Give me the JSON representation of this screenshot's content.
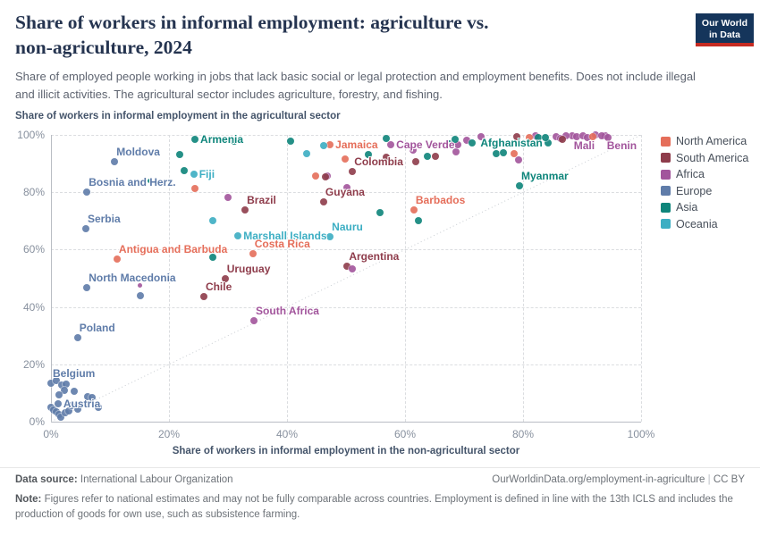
{
  "header": {
    "title_line1": "Share of workers in informal employment: agriculture vs.",
    "title_line2": "non-agriculture, 2024",
    "subtitle": "Share of employed people working in jobs that lack basic social or legal protection and employment benefits. Does not include illegal and illicit activities. The agricultural sector includes agriculture, forestry, and fishing.",
    "logo": {
      "line1": "Our World",
      "line2": "in Data",
      "bg_color": "#15355B",
      "bar_color": "#C62B22"
    }
  },
  "chart_data": {
    "type": "scatter",
    "title": "Share of workers in informal employment: agriculture vs. non-agriculture, 2024",
    "xlabel": "Share of workers in informal employment in the non-agricultural sector",
    "ylabel": "Share of workers in informal employment in the agricultural sector",
    "xlim": [
      0,
      100
    ],
    "ylim": [
      0,
      100
    ],
    "x_ticks": [
      "0%",
      "20%",
      "40%",
      "60%",
      "80%",
      "100%"
    ],
    "y_ticks": [
      "0%",
      "20%",
      "40%",
      "60%",
      "80%",
      "100%"
    ],
    "grid": "dashed",
    "diagonal_parity_line": true,
    "legend_position": "right",
    "regions": [
      {
        "id": "north_america",
        "label": "North America",
        "color": "#E56E5A"
      },
      {
        "id": "south_america",
        "label": "South America",
        "color": "#8E3C4B"
      },
      {
        "id": "africa",
        "label": "Africa",
        "color": "#A2559C"
      },
      {
        "id": "europe",
        "label": "Europe",
        "color": "#5F7CA9"
      },
      {
        "id": "asia",
        "label": "Asia",
        "color": "#0E857B"
      },
      {
        "id": "oceania",
        "label": "Oceania",
        "color": "#3CAEC3"
      }
    ],
    "points": [
      {
        "label": "Moldova",
        "region": "europe",
        "x": 10.8,
        "y": 90.7,
        "label_pos": "above"
      },
      {
        "label": "Armenia",
        "region": "asia",
        "x": 24.4,
        "y": 98.4,
        "label_pos": "right"
      },
      {
        "label": "Fiji",
        "region": "oceania",
        "x": 24.2,
        "y": 86.3,
        "label_pos": "right"
      },
      {
        "label": "Bosnia and Herz.",
        "region": "europe",
        "x": 6.1,
        "y": 80.1,
        "label_pos": "above"
      },
      {
        "label": "Serbia",
        "region": "europe",
        "x": 5.9,
        "y": 67.3,
        "label_pos": "above"
      },
      {
        "label": "Antigua and Barbuda",
        "region": "north_america",
        "x": 11.2,
        "y": 56.7,
        "label_pos": "above"
      },
      {
        "label": "North Macedonia",
        "region": "europe",
        "x": 6.1,
        "y": 46.7,
        "label_pos": "above"
      },
      {
        "label": "Poland",
        "region": "europe",
        "x": 4.5,
        "y": 29.3,
        "label_pos": "above"
      },
      {
        "label": "Belgium",
        "region": "europe",
        "x": 0.0,
        "y": 13.4,
        "label_pos": "above"
      },
      {
        "label": "Austria",
        "region": "europe",
        "x": 1.2,
        "y": 6.2,
        "label_pos": "right"
      },
      {
        "label": "Chile",
        "region": "south_america",
        "x": 25.9,
        "y": 43.6,
        "label_pos": "above"
      },
      {
        "label": "Uruguay",
        "region": "south_america",
        "x": 29.5,
        "y": 49.8,
        "label_pos": "above"
      },
      {
        "label": "Brazil",
        "region": "south_america",
        "x": 32.9,
        "y": 73.8,
        "label_pos": "above"
      },
      {
        "label": "Marshall Islands",
        "region": "oceania",
        "x": 31.7,
        "y": 64.8,
        "label_pos": "right"
      },
      {
        "label": "Costa Rica",
        "region": "north_america",
        "x": 34.2,
        "y": 58.6,
        "label_pos": "above"
      },
      {
        "label": "South Africa",
        "region": "africa",
        "x": 34.4,
        "y": 35.2,
        "label_pos": "above"
      },
      {
        "label": "Jamaica",
        "region": "north_america",
        "x": 47.3,
        "y": 96.6,
        "label_pos": "right"
      },
      {
        "label": "Colombia",
        "region": "south_america",
        "x": 51.1,
        "y": 87.2,
        "label_pos": "above"
      },
      {
        "label": "Guyana",
        "region": "south_america",
        "x": 46.2,
        "y": 76.6,
        "label_pos": "above"
      },
      {
        "label": "Nauru",
        "region": "oceania",
        "x": 47.3,
        "y": 64.5,
        "label_pos": "above"
      },
      {
        "label": "Argentina",
        "region": "south_america",
        "x": 50.2,
        "y": 54.2,
        "label_pos": "above"
      },
      {
        "label": "Cape Verde",
        "region": "africa",
        "x": 57.6,
        "y": 96.6,
        "label_pos": "right"
      },
      {
        "label": "Barbados",
        "region": "north_america",
        "x": 61.5,
        "y": 73.8,
        "label_pos": "above"
      },
      {
        "label": "Afghanistan",
        "region": "asia",
        "x": 84.2,
        "y": 97.2,
        "label_pos": "left"
      },
      {
        "label": "Myanmar",
        "region": "asia",
        "x": 79.4,
        "y": 82.2,
        "label_pos": "above"
      },
      {
        "label": "Mali",
        "region": "africa",
        "x": 88.3,
        "y": 99.7,
        "label_pos": "below"
      },
      {
        "label": "Benin",
        "region": "africa",
        "x": 93.9,
        "y": 99.7,
        "label_pos": "below"
      },
      {
        "region": "europe",
        "x": 0.9,
        "y": 14.3
      },
      {
        "region": "europe",
        "x": 1.8,
        "y": 12.8
      },
      {
        "region": "europe",
        "x": 2.6,
        "y": 13.1
      },
      {
        "region": "europe",
        "x": 2.3,
        "y": 10.9
      },
      {
        "region": "europe",
        "x": 3.9,
        "y": 10.6
      },
      {
        "region": "europe",
        "x": 1.4,
        "y": 9.3
      },
      {
        "region": "europe",
        "x": 6.2,
        "y": 8.7
      },
      {
        "region": "europe",
        "x": 7.0,
        "y": 8.4
      },
      {
        "region": "europe",
        "x": 0.0,
        "y": 5.0
      },
      {
        "region": "europe",
        "x": 0.5,
        "y": 4.0
      },
      {
        "region": "europe",
        "x": 0.9,
        "y": 3.4
      },
      {
        "region": "europe",
        "x": 1.4,
        "y": 2.5
      },
      {
        "region": "europe",
        "x": 1.7,
        "y": 1.6
      },
      {
        "region": "europe",
        "x": 2.4,
        "y": 3.1
      },
      {
        "region": "europe",
        "x": 3.0,
        "y": 3.7
      },
      {
        "region": "europe",
        "x": 4.5,
        "y": 4.4
      },
      {
        "region": "europe",
        "x": 3.5,
        "y": 5.6
      },
      {
        "region": "europe",
        "x": 8.0,
        "y": 5.0
      },
      {
        "region": "europe",
        "x": 15.2,
        "y": 43.9
      },
      {
        "region": "africa",
        "x": 15.0,
        "y": 47.4,
        "small": true
      },
      {
        "region": "asia",
        "x": 16.8,
        "y": 84.1,
        "small": true
      },
      {
        "region": "africa",
        "x": 30.0,
        "y": 78.2
      },
      {
        "region": "africa",
        "x": 46.8,
        "y": 85.7
      },
      {
        "region": "africa",
        "x": 50.2,
        "y": 81.6
      },
      {
        "region": "africa",
        "x": 51.1,
        "y": 53.3
      },
      {
        "region": "africa",
        "x": 61.4,
        "y": 94.7
      },
      {
        "region": "africa",
        "x": 68.6,
        "y": 94.1
      },
      {
        "region": "africa",
        "x": 68.9,
        "y": 96.6
      },
      {
        "region": "africa",
        "x": 70.5,
        "y": 98.1
      },
      {
        "region": "africa",
        "x": 72.9,
        "y": 99.4
      },
      {
        "region": "africa",
        "x": 79.2,
        "y": 91.3
      },
      {
        "region": "africa",
        "x": 82.1,
        "y": 99.7
      },
      {
        "region": "africa",
        "x": 85.6,
        "y": 99.4
      },
      {
        "region": "africa",
        "x": 86.4,
        "y": 98.8
      },
      {
        "region": "africa",
        "x": 87.3,
        "y": 99.7
      },
      {
        "region": "africa",
        "x": 89.1,
        "y": 99.4
      },
      {
        "region": "africa",
        "x": 90.2,
        "y": 99.7
      },
      {
        "region": "africa",
        "x": 90.9,
        "y": 99.1
      },
      {
        "region": "africa",
        "x": 92.3,
        "y": 99.9
      },
      {
        "region": "africa",
        "x": 93.3,
        "y": 99.7
      },
      {
        "region": "africa",
        "x": 94.4,
        "y": 99.1
      },
      {
        "region": "asia",
        "x": 31.1,
        "y": 97.8
      },
      {
        "region": "asia",
        "x": 21.8,
        "y": 93.1
      },
      {
        "region": "asia",
        "x": 22.6,
        "y": 87.5
      },
      {
        "region": "asia",
        "x": 40.6,
        "y": 97.8
      },
      {
        "region": "asia",
        "x": 53.8,
        "y": 93.1
      },
      {
        "region": "asia",
        "x": 56.8,
        "y": 98.8
      },
      {
        "region": "asia",
        "x": 63.8,
        "y": 92.5
      },
      {
        "region": "asia",
        "x": 67.4,
        "y": 96.9
      },
      {
        "region": "asia",
        "x": 68.5,
        "y": 98.4
      },
      {
        "region": "asia",
        "x": 71.4,
        "y": 97.2
      },
      {
        "region": "asia",
        "x": 75.5,
        "y": 93.5
      },
      {
        "region": "asia",
        "x": 76.7,
        "y": 93.8
      },
      {
        "region": "asia",
        "x": 82.6,
        "y": 99.1
      },
      {
        "region": "asia",
        "x": 83.8,
        "y": 99.1
      },
      {
        "region": "asia",
        "x": 55.8,
        "y": 72.9
      },
      {
        "region": "asia",
        "x": 62.3,
        "y": 70.1
      },
      {
        "region": "asia",
        "x": 27.4,
        "y": 57.3
      },
      {
        "region": "oceania",
        "x": 43.3,
        "y": 93.5
      },
      {
        "region": "oceania",
        "x": 46.2,
        "y": 96.3
      },
      {
        "region": "oceania",
        "x": 27.4,
        "y": 70.1
      },
      {
        "region": "north_america",
        "x": 24.4,
        "y": 81.3
      },
      {
        "region": "north_america",
        "x": 44.8,
        "y": 85.7
      },
      {
        "region": "north_america",
        "x": 49.8,
        "y": 91.6
      },
      {
        "region": "north_america",
        "x": 78.5,
        "y": 93.5
      },
      {
        "region": "north_america",
        "x": 91.8,
        "y": 99.4
      },
      {
        "region": "north_america",
        "x": 81.1,
        "y": 99.1
      },
      {
        "region": "south_america",
        "x": 56.8,
        "y": 92.2
      },
      {
        "region": "south_america",
        "x": 61.8,
        "y": 90.7
      },
      {
        "region": "south_america",
        "x": 65.2,
        "y": 92.5
      },
      {
        "region": "south_america",
        "x": 46.5,
        "y": 85.4
      },
      {
        "region": "south_america",
        "x": 78.9,
        "y": 99.4
      },
      {
        "region": "south_america",
        "x": 86.7,
        "y": 98.4
      }
    ]
  },
  "footer": {
    "datasource_prefix": "Data source:",
    "datasource": "International Labour Organization",
    "url": "OurWorldinData.org/employment-in-agriculture",
    "separator": "|",
    "license": "CC BY",
    "note_prefix": "Note:",
    "note": "Figures refer to national estimates and may not be fully comparable across countries. Employment is defined in line with the 13th ICLS and includes the production of goods for own use, such as subsistence farming."
  }
}
